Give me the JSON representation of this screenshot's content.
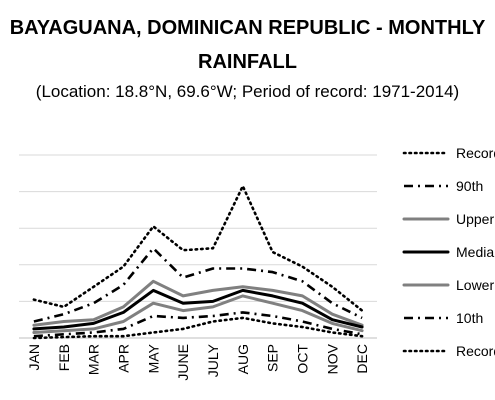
{
  "chart_data": {
    "type": "line",
    "title_line1": "BAYAGUANA, DOMINICAN REPUBLIC - MONTHLY",
    "title_line2": "RAINFALL",
    "subtitle": "(Location: 18.8°N, 69.6°W; Period of record: 1971-2014)",
    "categories": [
      "JAN",
      "FEB",
      "MAR",
      "APR",
      "MAY",
      "JUNE",
      "JULY",
      "AUG",
      "SEP",
      "OCT",
      "NOV",
      "DEC"
    ],
    "grid": true,
    "legend_position": "right",
    "legend_entries": [
      "Record High",
      "90th",
      "Upper",
      "Median",
      "Lower",
      "10th",
      "Record Low"
    ],
    "series": [
      {
        "name": "Record High",
        "color": "#000000",
        "style": "dotted",
        "values": [
          2.1,
          1.7,
          2.8,
          3.9,
          6.1,
          4.8,
          4.9,
          8.3,
          4.7,
          3.9,
          2.8,
          1.5
        ]
      },
      {
        "name": "90th",
        "color": "#000000",
        "style": "dashdot",
        "values": [
          0.9,
          1.3,
          1.9,
          2.9,
          4.9,
          3.3,
          3.8,
          3.8,
          3.6,
          3.1,
          1.9,
          1.1
        ]
      },
      {
        "name": "Upper",
        "color": "#808080",
        "style": "solid",
        "values": [
          0.7,
          0.9,
          1.0,
          1.7,
          3.1,
          2.3,
          2.6,
          2.8,
          2.6,
          2.3,
          1.3,
          0.7
        ]
      },
      {
        "name": "Median",
        "color": "#000000",
        "style": "solid",
        "values": [
          0.5,
          0.6,
          0.8,
          1.4,
          2.6,
          1.9,
          2.0,
          2.6,
          2.3,
          1.9,
          1.0,
          0.6
        ]
      },
      {
        "name": "Lower",
        "color": "#808080",
        "style": "solid",
        "values": [
          0.3,
          0.4,
          0.5,
          0.9,
          1.9,
          1.5,
          1.7,
          2.3,
          1.9,
          1.5,
          0.8,
          0.4
        ]
      },
      {
        "name": "10th",
        "color": "#000000",
        "style": "dashdot",
        "values": [
          0.1,
          0.2,
          0.3,
          0.5,
          1.2,
          1.1,
          1.2,
          1.4,
          1.2,
          0.9,
          0.5,
          0.2
        ]
      },
      {
        "name": "Record Low",
        "color": "#000000",
        "style": "dotted",
        "values": [
          0.0,
          0.05,
          0.1,
          0.1,
          0.3,
          0.5,
          0.9,
          1.1,
          0.8,
          0.6,
          0.3,
          0.1
        ]
      }
    ],
    "ylim": [
      0,
      10
    ]
  }
}
